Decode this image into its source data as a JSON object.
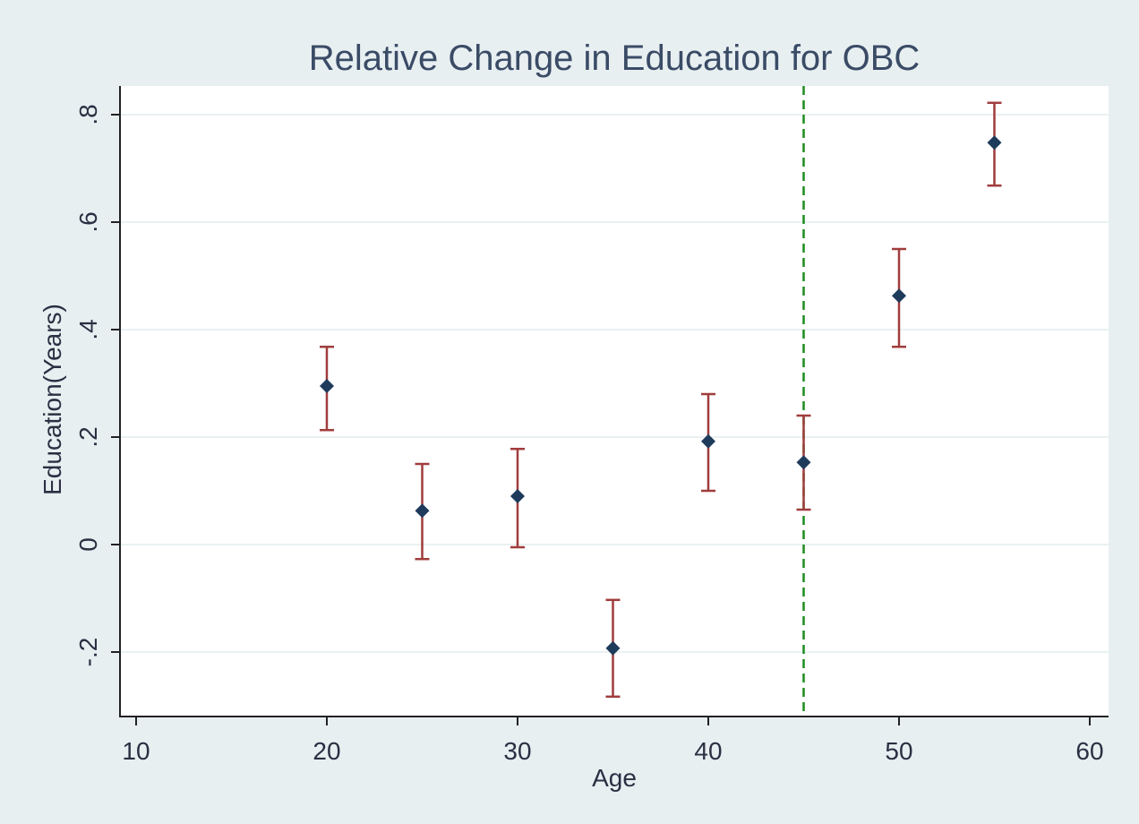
{
  "chart_data": {
    "type": "scatter",
    "title": "Relative Change in Education for OBC",
    "xlabel": "Age",
    "ylabel": "Education(Years)",
    "xlim": [
      10,
      60
    ],
    "ylim": [
      -0.32,
      0.85
    ],
    "x_ticks": [
      10,
      20,
      30,
      40,
      50,
      60
    ],
    "x_tick_labels": [
      "10",
      "20",
      "30",
      "40",
      "50",
      "60"
    ],
    "y_ticks": [
      -0.2,
      0,
      0.2,
      0.4,
      0.6,
      0.8
    ],
    "y_tick_labels": [
      "-.2",
      "0",
      ".2",
      ".4",
      ".6",
      ".8"
    ],
    "grid": true,
    "series": [
      {
        "x": [
          20,
          25,
          30,
          35,
          40,
          45,
          50,
          55
        ],
        "y": [
          0.295,
          0.063,
          0.09,
          -0.193,
          0.192,
          0.153,
          0.463,
          0.748
        ],
        "ci_low": [
          0.213,
          -0.027,
          -0.005,
          -0.283,
          0.1,
          0.065,
          0.368,
          0.668
        ],
        "ci_high": [
          0.368,
          0.15,
          0.178,
          -0.103,
          0.28,
          0.24,
          0.55,
          0.822
        ]
      }
    ],
    "reference_line": {
      "orientation": "vertical",
      "x": 45,
      "style": "dashed"
    },
    "colors": {
      "background": "#e8eff1",
      "plot_area": "#ffffff",
      "gridline": "#eaf1f3",
      "point": "#1f3b5c",
      "error_bar": "#a03c3c",
      "reference_line": "#1e8c1e",
      "text": "#2a3042",
      "title": "#3a4b66"
    }
  }
}
